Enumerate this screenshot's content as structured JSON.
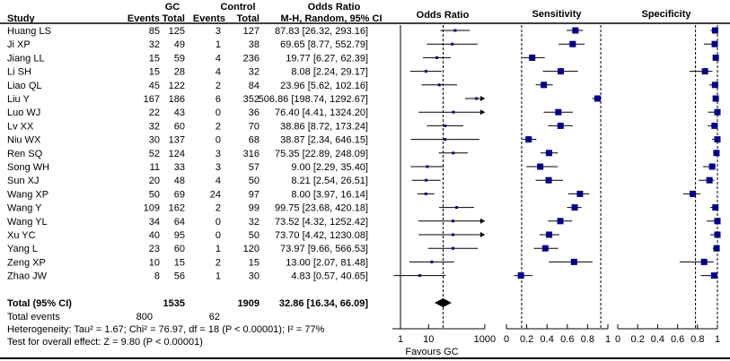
{
  "chart_data": {
    "type": "forest",
    "headers": {
      "group1": "GC",
      "group2": "Control",
      "or_col": "Odds Ratio",
      "or_sub": "M-H, Random, 95% CI",
      "study": "Study",
      "events": "Events",
      "total": "Total",
      "plot_or": "Odds Ratio",
      "plot_sens": "Sensitivity",
      "plot_spec": "Specificity"
    },
    "studies": [
      {
        "name": "Huang LS",
        "gc_events": 85,
        "gc_total": 125,
        "ctrl_events": 3,
        "ctrl_total": 127,
        "or": 87.83,
        "lo": 26.32,
        "hi": 293.16,
        "or_text": "87.83 [26.32, 293.16]"
      },
      {
        "name": "Ji XP",
        "gc_events": 32,
        "gc_total": 49,
        "ctrl_events": 1,
        "ctrl_total": 38,
        "or": 69.65,
        "lo": 8.77,
        "hi": 552.79,
        "or_text": "69.65 [8.77, 552.79]"
      },
      {
        "name": "Jiang LL",
        "gc_events": 15,
        "gc_total": 59,
        "ctrl_events": 4,
        "ctrl_total": 236,
        "or": 19.77,
        "lo": 6.27,
        "hi": 62.39,
        "or_text": "19.77 [6.27, 62.39]"
      },
      {
        "name": "Li SH",
        "gc_events": 15,
        "gc_total": 28,
        "ctrl_events": 4,
        "ctrl_total": 32,
        "or": 8.08,
        "lo": 2.24,
        "hi": 29.17,
        "or_text": "8.08 [2.24, 29.17]"
      },
      {
        "name": "Liao QL",
        "gc_events": 45,
        "gc_total": 122,
        "ctrl_events": 2,
        "ctrl_total": 84,
        "or": 23.96,
        "lo": 5.62,
        "hi": 102.16,
        "or_text": "23.96 [5.62, 102.16]"
      },
      {
        "name": "Liu Y",
        "gc_events": 167,
        "gc_total": 186,
        "ctrl_events": 6,
        "ctrl_total": 352,
        "or": 506.86,
        "lo": 198.74,
        "hi": 1292.67,
        "or_text": "506.86 [198.74, 1292.67]"
      },
      {
        "name": "Luo WJ",
        "gc_events": 22,
        "gc_total": 43,
        "ctrl_events": 0,
        "ctrl_total": 36,
        "or": 76.4,
        "lo": 4.41,
        "hi": 1324.2,
        "or_text": "76.40 [4.41, 1324.20]"
      },
      {
        "name": "Lv XX",
        "gc_events": 32,
        "gc_total": 60,
        "ctrl_events": 2,
        "ctrl_total": 70,
        "or": 38.86,
        "lo": 8.72,
        "hi": 173.24,
        "or_text": "38.86 [8.72, 173.24]"
      },
      {
        "name": "Niu WX",
        "gc_events": 30,
        "gc_total": 137,
        "ctrl_events": 0,
        "ctrl_total": 68,
        "or": 38.87,
        "lo": 2.34,
        "hi": 646.15,
        "or_text": "38.87 [2.34, 646.15]"
      },
      {
        "name": "Ren SQ",
        "gc_events": 52,
        "gc_total": 124,
        "ctrl_events": 3,
        "ctrl_total": 316,
        "or": 75.35,
        "lo": 22.89,
        "hi": 248.09,
        "or_text": "75.35 [22.89, 248.09]"
      },
      {
        "name": "Song WH",
        "gc_events": 11,
        "gc_total": 33,
        "ctrl_events": 3,
        "ctrl_total": 57,
        "or": 9.0,
        "lo": 2.29,
        "hi": 35.4,
        "or_text": "9.00 [2.29, 35.40]"
      },
      {
        "name": "Sun XJ",
        "gc_events": 20,
        "gc_total": 48,
        "ctrl_events": 4,
        "ctrl_total": 50,
        "or": 8.21,
        "lo": 2.54,
        "hi": 26.51,
        "or_text": "8.21 [2.54, 26.51]"
      },
      {
        "name": "Wang XP",
        "gc_events": 50,
        "gc_total": 69,
        "ctrl_events": 24,
        "ctrl_total": 97,
        "or": 8.0,
        "lo": 3.97,
        "hi": 16.14,
        "or_text": "8.00 [3.97, 16.14]"
      },
      {
        "name": "Wang Y",
        "gc_events": 109,
        "gc_total": 162,
        "ctrl_events": 2,
        "ctrl_total": 99,
        "or": 99.75,
        "lo": 23.68,
        "hi": 420.18,
        "or_text": "99.75 [23.68, 420.18]"
      },
      {
        "name": "Wang YL",
        "gc_events": 34,
        "gc_total": 64,
        "ctrl_events": 0,
        "ctrl_total": 32,
        "or": 73.52,
        "lo": 4.32,
        "hi": 1252.42,
        "or_text": "73.52 [4.32, 1252.42]"
      },
      {
        "name": "Xu YC",
        "gc_events": 40,
        "gc_total": 95,
        "ctrl_events": 0,
        "ctrl_total": 50,
        "or": 73.7,
        "lo": 4.42,
        "hi": 1230.08,
        "or_text": "73.70 [4.42, 1230.08]"
      },
      {
        "name": "Yang L",
        "gc_events": 23,
        "gc_total": 60,
        "ctrl_events": 1,
        "ctrl_total": 120,
        "or": 73.97,
        "lo": 9.66,
        "hi": 566.53,
        "or_text": "73.97 [9.66, 566.53]"
      },
      {
        "name": "Zeng XP",
        "gc_events": 10,
        "gc_total": 15,
        "ctrl_events": 2,
        "ctrl_total": 15,
        "or": 13.0,
        "lo": 2.07,
        "hi": 81.48,
        "or_text": "13.00 [2.07, 81.48]"
      },
      {
        "name": "Zhao JW",
        "gc_events": 8,
        "gc_total": 56,
        "ctrl_events": 1,
        "ctrl_total": 30,
        "or": 4.83,
        "lo": 0.57,
        "hi": 40.65,
        "or_text": "4.83 [0.57, 40.65]"
      }
    ],
    "total": {
      "label": "Total (95% CI)",
      "gc_total": 1535,
      "ctrl_total": 1909,
      "or": 32.86,
      "lo": 16.34,
      "hi": 66.09,
      "or_text": "32.86 [16.34, 66.09]"
    },
    "total_events": {
      "label": "Total events",
      "gc": 800,
      "ctrl": 62
    },
    "heterogeneity": "Heterogeneity: Tau² = 1.67; Chi² = 76.97, df = 18 (P < 0.00001); I² = 77%",
    "overall_effect": "Test for overall effect: Z = 9.80 (P < 0.00001)",
    "or_axis": {
      "scale": "log",
      "ticks": [
        "1",
        "10",
        "1000"
      ],
      "favours": "Favours GC"
    },
    "sens_axis": {
      "range": [
        0,
        1
      ],
      "ticks": [
        "0",
        "0.2",
        "0.4",
        "0.6",
        "0.8",
        "1"
      ],
      "ref_lines": [
        0.15,
        0.93
      ]
    },
    "spec_axis": {
      "range": [
        0,
        1
      ],
      "ticks": [
        "0",
        "0.2",
        "0.4",
        "0.6",
        "0.8",
        "1"
      ],
      "ref_lines": [
        0.78,
        1.0
      ]
    },
    "marker_color": "#00008b"
  }
}
